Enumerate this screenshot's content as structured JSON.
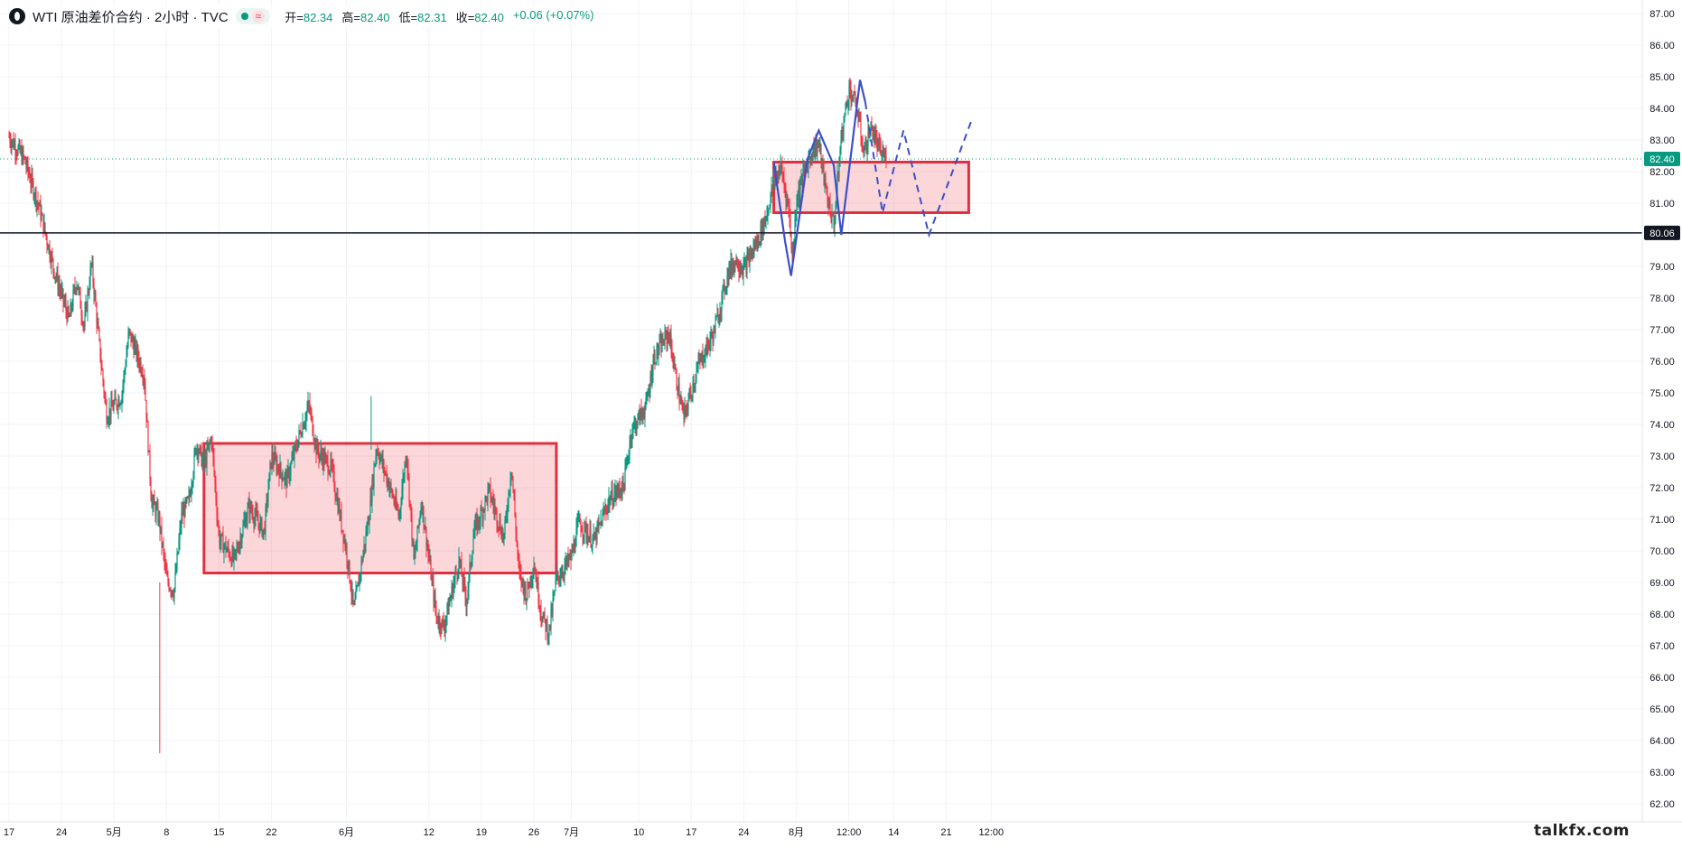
{
  "header": {
    "symbol_title": "WTI 原油差价合约 · 2小时 · TVC",
    "ohlc": [
      {
        "label": "开=",
        "value": "82.34"
      },
      {
        "label": "高=",
        "value": "82.40"
      },
      {
        "label": "低=",
        "value": "82.31"
      },
      {
        "label": "收=",
        "value": "82.40"
      },
      {
        "label": "",
        "value": "+0.06 (+0.07%)"
      }
    ],
    "icons": {
      "logo": "tradingview-logo-icon",
      "status": "market-open-dot-icon",
      "approx": "approx-equal-icon"
    },
    "approx_symbol": "≈"
  },
  "watermark": "talkfx.com",
  "colors": {
    "up": "#089981",
    "down": "#f23645",
    "zone_fill": "rgba(242,54,69,0.20)",
    "zone_border": "#e0303f",
    "pattern_line": "#3d4fc9",
    "support_line": "#131722",
    "current_price_badge": "#089981"
  },
  "chart_data": {
    "type": "candlestick",
    "ylim": [
      61.6,
      87.2
    ],
    "y_ticks": [
      62,
      63,
      64,
      65,
      66,
      67,
      68,
      69,
      70,
      71,
      72,
      73,
      74,
      75,
      76,
      77,
      78,
      79,
      80,
      81,
      82,
      83,
      84,
      85,
      86,
      87
    ],
    "x_range_days": [
      0,
      165
    ],
    "x_ticks": [
      {
        "label": "17",
        "day": 0
      },
      {
        "label": "24",
        "day": 7
      },
      {
        "label": "5月",
        "day": 14
      },
      {
        "label": "8",
        "day": 21
      },
      {
        "label": "15",
        "day": 28
      },
      {
        "label": "22",
        "day": 35
      },
      {
        "label": "6月",
        "day": 45
      },
      {
        "label": "12",
        "day": 56
      },
      {
        "label": "19",
        "day": 63
      },
      {
        "label": "26",
        "day": 70
      },
      {
        "label": "7月",
        "day": 75
      },
      {
        "label": "10",
        "day": 84
      },
      {
        "label": "17",
        "day": 91
      },
      {
        "label": "24",
        "day": 98
      },
      {
        "label": "8月",
        "day": 105
      },
      {
        "label": "12:00",
        "day": 112
      },
      {
        "label": "14",
        "day": 118
      },
      {
        "label": "21",
        "day": 125
      },
      {
        "label": "12:00",
        "day": 131
      }
    ],
    "price_path": [
      [
        0,
        83.1
      ],
      [
        2,
        82.4
      ],
      [
        4,
        80.9
      ],
      [
        6,
        78.9
      ],
      [
        8,
        77.3
      ],
      [
        9,
        78.6
      ],
      [
        10,
        77.1
      ],
      [
        11,
        79.1
      ],
      [
        12,
        76.6
      ],
      [
        13,
        74.3
      ],
      [
        15,
        74.9
      ],
      [
        16,
        76.9
      ],
      [
        18,
        75.6
      ],
      [
        19,
        71.6
      ],
      [
        20,
        71.0
      ],
      [
        21,
        69.1
      ],
      [
        22,
        68.7
      ],
      [
        23,
        71.1
      ],
      [
        24,
        71.6
      ],
      [
        25,
        73.4
      ],
      [
        26,
        72.7
      ],
      [
        27,
        73.6
      ],
      [
        28,
        70.4
      ],
      [
        30,
        69.7
      ],
      [
        32,
        71.4
      ],
      [
        34,
        70.6
      ],
      [
        35,
        73.0
      ],
      [
        37,
        72.2
      ],
      [
        39,
        73.9
      ],
      [
        40,
        74.6
      ],
      [
        41,
        73.2
      ],
      [
        43,
        72.6
      ],
      [
        45,
        70.0
      ],
      [
        46,
        68.1
      ],
      [
        47,
        69.6
      ],
      [
        48,
        71.1
      ],
      [
        49,
        73.3
      ],
      [
        50,
        72.6
      ],
      [
        52,
        71.1
      ],
      [
        53,
        73.2
      ],
      [
        54,
        69.6
      ],
      [
        55,
        71.6
      ],
      [
        57,
        67.9
      ],
      [
        58,
        67.6
      ],
      [
        60,
        69.7
      ],
      [
        61,
        68.4
      ],
      [
        62,
        70.6
      ],
      [
        63,
        71.2
      ],
      [
        64,
        71.9
      ],
      [
        66,
        70.4
      ],
      [
        67,
        72.7
      ],
      [
        68,
        69.3
      ],
      [
        69,
        68.6
      ],
      [
        70,
        69.6
      ],
      [
        71,
        68.0
      ],
      [
        72,
        67.4
      ],
      [
        73,
        69.1
      ],
      [
        75,
        69.8
      ],
      [
        76,
        70.9
      ],
      [
        78,
        70.3
      ],
      [
        80,
        71.6
      ],
      [
        82,
        72.1
      ],
      [
        83,
        73.8
      ],
      [
        85,
        74.6
      ],
      [
        86,
        76.1
      ],
      [
        88,
        76.9
      ],
      [
        89,
        75.4
      ],
      [
        90,
        74.2
      ],
      [
        91,
        75.1
      ],
      [
        92,
        75.9
      ],
      [
        94,
        76.9
      ],
      [
        96,
        78.9
      ],
      [
        97,
        79.2
      ],
      [
        98,
        78.9
      ],
      [
        100,
        79.9
      ],
      [
        101,
        80.6
      ],
      [
        102,
        81.7
      ],
      [
        103,
        82.1
      ],
      [
        104,
        80.8
      ],
      [
        104.5,
        79.2
      ],
      [
        105,
        81.1
      ],
      [
        106,
        81.9
      ],
      [
        107,
        82.6
      ],
      [
        108,
        82.9
      ],
      [
        109,
        81.3
      ],
      [
        110,
        80.3
      ],
      [
        111,
        83.1
      ],
      [
        112,
        84.6
      ],
      [
        113,
        84.1
      ],
      [
        114,
        82.6
      ],
      [
        115,
        83.4
      ],
      [
        116,
        82.7
      ],
      [
        117,
        82.4
      ]
    ],
    "current_price": 82.4,
    "horizontal_lines": [
      {
        "price": 80.06,
        "label": "80.06"
      }
    ],
    "current_price_label": "82.40",
    "zones": [
      {
        "from_day": 26,
        "to_day": 73,
        "top": 73.4,
        "bottom": 69.3
      },
      {
        "from_day": 102,
        "to_day": 128,
        "top": 82.3,
        "bottom": 80.7
      }
    ],
    "pattern_solid": [
      [
        102,
        82.3
      ],
      [
        103.5,
        79.8
      ],
      [
        104.3,
        78.7
      ],
      [
        106.5,
        82.4
      ],
      [
        108,
        83.3
      ],
      [
        110,
        82.2
      ],
      [
        111,
        80.0
      ],
      [
        113.5,
        84.9
      ],
      [
        114.2,
        84.2
      ]
    ],
    "pattern_dashed": [
      [
        114.2,
        84.2
      ],
      [
        116.5,
        80.7
      ],
      [
        119.3,
        83.3
      ],
      [
        122.7,
        80.0
      ],
      [
        128.5,
        83.7
      ]
    ]
  }
}
